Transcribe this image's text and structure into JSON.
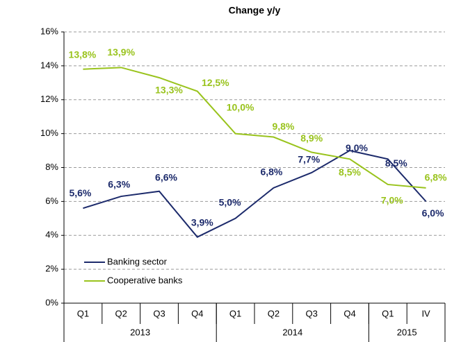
{
  "chart_data": {
    "type": "line",
    "title": "Change y/y",
    "categories": [
      "Q1",
      "Q2",
      "Q3",
      "Q4",
      "Q1",
      "Q2",
      "Q3",
      "Q4",
      "Q1",
      "IV"
    ],
    "category_groups": [
      {
        "label": "2013",
        "size": 4
      },
      {
        "label": "2014",
        "size": 4
      },
      {
        "label": "2015",
        "size": 2
      }
    ],
    "series": [
      {
        "name": "Banking sector",
        "color": "#1c2a6b",
        "values": [
          5.6,
          6.3,
          6.6,
          3.9,
          5.0,
          6.8,
          7.7,
          9.0,
          8.5,
          6.0
        ],
        "value_labels": [
          "5,6%",
          "6,3%",
          "6,6%",
          "3,9%",
          "5,0%",
          "6,8%",
          "7,7%",
          "9,0%",
          "8,5%",
          "6,0%"
        ]
      },
      {
        "name": "Cooperative banks",
        "color": "#99c31c",
        "values": [
          13.8,
          13.9,
          13.3,
          12.5,
          10.0,
          9.8,
          8.9,
          8.5,
          7.0,
          6.8
        ],
        "value_labels": [
          "13,8%",
          "13,9%",
          "13,3%",
          "12,5%",
          "10,0%",
          "9,8%",
          "8,9%",
          "8,5%",
          "7,0%",
          "6,8%"
        ]
      }
    ],
    "ylim": [
      0,
      16
    ],
    "yticks": [
      {
        "value": 0,
        "label": "0%"
      },
      {
        "value": 2,
        "label": "2%"
      },
      {
        "value": 4,
        "label": "4%"
      },
      {
        "value": 6,
        "label": "6%"
      },
      {
        "value": 8,
        "label": "8%"
      },
      {
        "value": 10,
        "label": "10%"
      },
      {
        "value": 12,
        "label": "12%"
      },
      {
        "value": 14,
        "label": "14%"
      },
      {
        "value": 16,
        "label": "16%"
      }
    ],
    "grid": true,
    "legend": "lower left"
  }
}
